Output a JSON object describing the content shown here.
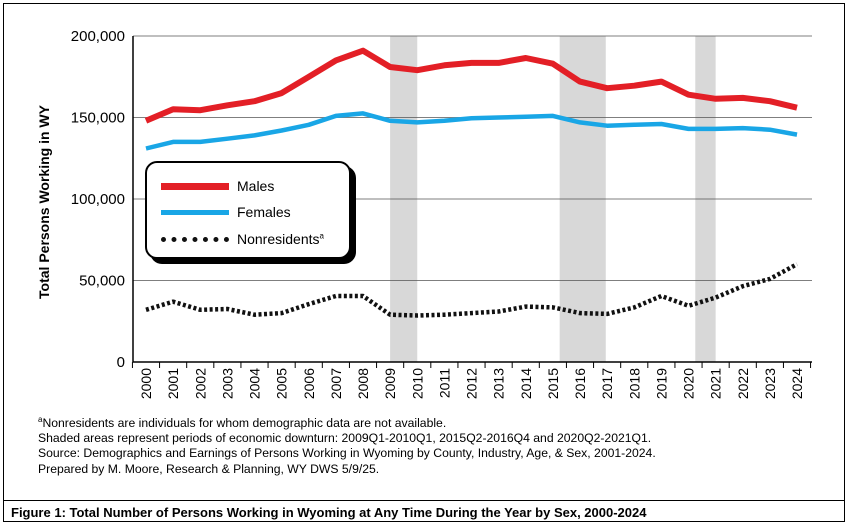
{
  "chart_data": {
    "type": "line",
    "ylabel": "Total Persons Working in WY",
    "xlabel": "",
    "x": [
      "2000",
      "2001",
      "2002",
      "2003",
      "2004",
      "2005",
      "2006",
      "2007",
      "2008",
      "2009",
      "2010",
      "2011",
      "2012",
      "2013",
      "2014",
      "2015",
      "2016",
      "2017",
      "2018",
      "2019",
      "2020",
      "2021",
      "2022",
      "2023",
      "2024"
    ],
    "ylim": [
      0,
      200000
    ],
    "yticks": [
      0,
      50000,
      100000,
      150000,
      200000
    ],
    "ytick_labels": [
      "0",
      "50,000",
      "100,000",
      "150,000",
      "200,000"
    ],
    "grid": "horizontal",
    "series": [
      {
        "name": "Males",
        "color": "#e31f26",
        "style": "solid",
        "values": [
          148000,
          155000,
          154500,
          157500,
          160000,
          165000,
          175000,
          185000,
          191000,
          181000,
          179000,
          182000,
          183500,
          183500,
          186500,
          183000,
          172000,
          168000,
          169500,
          172000,
          164000,
          161500,
          162000,
          160000,
          156000
        ]
      },
      {
        "name": "Females",
        "color": "#19a6e6",
        "style": "solid",
        "values": [
          131000,
          135000,
          135000,
          137000,
          139000,
          142000,
          145500,
          151000,
          152500,
          148000,
          147000,
          148000,
          149500,
          150000,
          150500,
          151000,
          147000,
          145000,
          145500,
          146000,
          143000,
          143000,
          143500,
          142500,
          139500
        ]
      },
      {
        "name": "Nonresidents",
        "name_sup": "a",
        "color": "#111111",
        "style": "dotted",
        "values": [
          32000,
          37000,
          32000,
          32500,
          29000,
          30000,
          35500,
          40500,
          40500,
          29000,
          28500,
          29000,
          30000,
          31000,
          34000,
          33500,
          30000,
          29500,
          33500,
          40500,
          34500,
          39500,
          46500,
          51000,
          60000
        ]
      }
    ],
    "shaded_periods": [
      {
        "from": 2009.0,
        "to": 2010.0
      },
      {
        "from": 2015.25,
        "to": 2016.95
      },
      {
        "from": 2020.25,
        "to": 2021.0
      }
    ],
    "shade_color": "#d8d8d8",
    "legend_position": "upper-left inside plot"
  },
  "notes": {
    "line1_sup": "a",
    "line1": "Nonresidents are individuals for whom demographic data are not available.",
    "line2": "Shaded areas represent periods of economic downturn: 2009Q1-2010Q1, 2015Q2-2016Q4 and 2020Q2-2021Q1.",
    "line3": "Source: Demographics and Earnings of Persons Working in Wyoming by County, Industry, Age, & Sex, 2001-2024.",
    "line4": "Prepared by M. Moore, Research & Planning, WY DWS 5/9/25."
  },
  "caption": "Figure 1: Total Number of Persons Working in Wyoming at Any Time During the Year by Sex, 2000-2024"
}
